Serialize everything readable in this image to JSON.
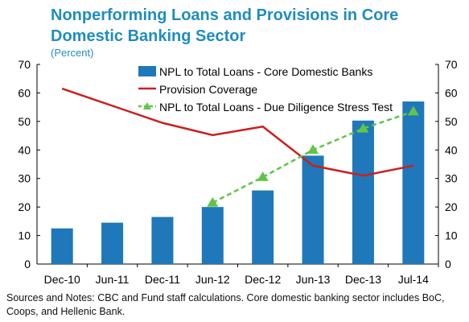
{
  "header": {
    "title": "Nonperforming Loans and Provisions in Core Domestic Banking Sector",
    "subtitle": "(Percent)"
  },
  "footer": {
    "notes": "Sources and Notes: CBC and Fund staff calculations. Core domestic banking sector includes BoC, Coops, and Hellenic Bank."
  },
  "colors": {
    "bars": "#1f78b9",
    "provision": "#cc1f1f",
    "stress": "#62c447"
  },
  "chart_data": {
    "type": "bar",
    "categories": [
      "Dec-10",
      "Jun-11",
      "Dec-11",
      "Jun-12",
      "Dec-12",
      "Jun-13",
      "Dec-13",
      "Jul-14"
    ],
    "ylim": [
      0,
      70
    ],
    "yticks": [
      0,
      10,
      20,
      30,
      40,
      50,
      60,
      70
    ],
    "y2lim": [
      0,
      70
    ],
    "grid": false,
    "legend_position": "top-right",
    "series": [
      {
        "name": "NPL to Total Loans - Core Domestic Banks",
        "type": "bar",
        "values": [
          12.5,
          14.5,
          16.5,
          20,
          25.8,
          38,
          50.3,
          57
        ]
      },
      {
        "name": "Provision Coverage",
        "type": "line",
        "values": [
          61.5,
          55.5,
          49.5,
          45.2,
          48.2,
          34.5,
          31,
          34.5
        ]
      },
      {
        "name": "NPL to Total Loans - Due Diligence Stress Test",
        "type": "line",
        "style": "dashed",
        "values": [
          null,
          null,
          null,
          21.5,
          30.5,
          40,
          47.5,
          53.5
        ]
      }
    ]
  }
}
